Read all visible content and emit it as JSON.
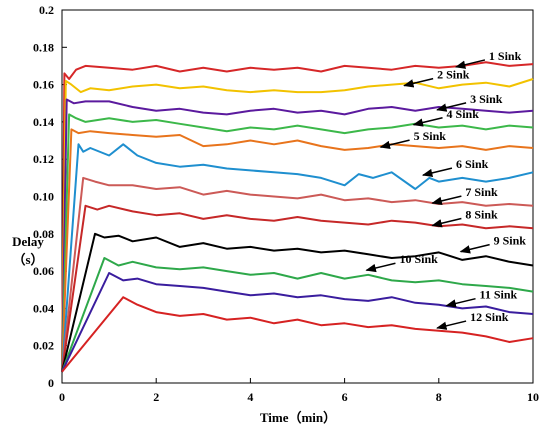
{
  "chart_data": {
    "type": "line",
    "title": "",
    "xlabel": "Time（min）",
    "ylabel": [
      "Delay",
      "（s）"
    ],
    "xlim": [
      0,
      10
    ],
    "ylim": [
      0,
      0.2
    ],
    "xticks": [
      "0",
      "2",
      "4",
      "6",
      "8",
      "10"
    ],
    "yticks": [
      "0",
      "0.02",
      "0.04",
      "0.06",
      "0.08",
      "0.10",
      "0.12",
      "0.14",
      "0.16",
      "0.18",
      "0.2"
    ],
    "grid": false,
    "legend": "annotations",
    "series": [
      {
        "name": "1 Sink",
        "color": "#d62728",
        "annotation_at": [
          8.3,
          0.17
        ],
        "x": [
          0,
          0.05,
          0.15,
          0.3,
          0.5,
          1,
          1.5,
          2,
          2.5,
          3,
          3.5,
          4,
          4.5,
          5,
          5.5,
          6,
          6.5,
          7,
          7.5,
          8,
          8.5,
          9,
          9.5,
          10
        ],
        "y": [
          0.006,
          0.166,
          0.163,
          0.168,
          0.17,
          0.169,
          0.168,
          0.17,
          0.167,
          0.169,
          0.167,
          0.169,
          0.168,
          0.169,
          0.167,
          0.17,
          0.169,
          0.168,
          0.17,
          0.169,
          0.17,
          0.172,
          0.17,
          0.171
        ]
      },
      {
        "name": "2 Sink",
        "color": "#f2c200",
        "annotation_at": [
          7.2,
          0.16
        ],
        "x": [
          0,
          0.08,
          0.2,
          0.4,
          0.6,
          1,
          1.5,
          2,
          2.5,
          3,
          3.5,
          4,
          4.5,
          5,
          5.5,
          6,
          6.5,
          7,
          7.5,
          8,
          8.5,
          9,
          9.5,
          10
        ],
        "y": [
          0.006,
          0.162,
          0.16,
          0.156,
          0.158,
          0.157,
          0.159,
          0.16,
          0.158,
          0.159,
          0.157,
          0.156,
          0.157,
          0.156,
          0.156,
          0.157,
          0.159,
          0.16,
          0.161,
          0.158,
          0.16,
          0.161,
          0.159,
          0.163
        ]
      },
      {
        "name": "3 Sink",
        "color": "#5b1a9e",
        "annotation_at": [
          7.9,
          0.147
        ],
        "x": [
          0,
          0.1,
          0.25,
          0.5,
          1,
          1.5,
          2,
          2.5,
          3,
          3.5,
          4,
          4.5,
          5,
          5.5,
          6,
          6.5,
          7,
          7.5,
          8,
          8.5,
          9,
          9.5,
          10
        ],
        "y": [
          0.006,
          0.152,
          0.15,
          0.151,
          0.151,
          0.148,
          0.146,
          0.147,
          0.145,
          0.144,
          0.146,
          0.147,
          0.145,
          0.146,
          0.144,
          0.147,
          0.148,
          0.146,
          0.148,
          0.147,
          0.146,
          0.145,
          0.146
        ]
      },
      {
        "name": "4 Sink",
        "color": "#3cb84a",
        "annotation_at": [
          7.4,
          0.139
        ],
        "x": [
          0,
          0.15,
          0.3,
          0.5,
          1,
          1.5,
          2,
          2.5,
          3,
          3.5,
          4,
          4.5,
          5,
          5.5,
          6,
          6.5,
          7,
          7.5,
          8,
          8.5,
          9,
          9.5,
          10
        ],
        "y": [
          0.006,
          0.144,
          0.142,
          0.14,
          0.142,
          0.14,
          0.141,
          0.139,
          0.137,
          0.135,
          0.137,
          0.136,
          0.138,
          0.136,
          0.134,
          0.136,
          0.137,
          0.139,
          0.137,
          0.138,
          0.136,
          0.138,
          0.137
        ]
      },
      {
        "name": "5 Sink",
        "color": "#e8741c",
        "annotation_at": [
          6.7,
          0.127
        ],
        "x": [
          0,
          0.2,
          0.35,
          0.6,
          1,
          1.5,
          2,
          2.5,
          3,
          3.5,
          4,
          4.5,
          5,
          5.5,
          6,
          6.5,
          7,
          7.5,
          8,
          8.5,
          9,
          9.5,
          10
        ],
        "y": [
          0.006,
          0.136,
          0.134,
          0.135,
          0.134,
          0.133,
          0.132,
          0.133,
          0.127,
          0.128,
          0.13,
          0.128,
          0.13,
          0.127,
          0.125,
          0.126,
          0.128,
          0.127,
          0.126,
          0.127,
          0.125,
          0.127,
          0.126
        ]
      },
      {
        "name": "6 Sink",
        "color": "#1f8fcf",
        "annotation_at": [
          7.6,
          0.112
        ],
        "x": [
          0,
          0.35,
          0.45,
          0.6,
          1,
          1.3,
          1.6,
          2,
          2.5,
          3,
          3.5,
          4,
          4.5,
          5,
          5.5,
          6,
          6.3,
          6.6,
          7,
          7.5,
          7.8,
          8,
          8.5,
          9,
          9.5,
          10
        ],
        "y": [
          0.006,
          0.128,
          0.124,
          0.126,
          0.122,
          0.128,
          0.122,
          0.118,
          0.116,
          0.117,
          0.115,
          0.114,
          0.113,
          0.112,
          0.11,
          0.106,
          0.112,
          0.11,
          0.113,
          0.104,
          0.11,
          0.108,
          0.11,
          0.108,
          0.11,
          0.113
        ]
      },
      {
        "name": "7 Sink",
        "color": "#cc5a57",
        "annotation_at": [
          7.8,
          0.097
        ],
        "x": [
          0,
          0.45,
          0.7,
          1,
          1.5,
          2,
          2.5,
          3,
          3.5,
          4,
          4.5,
          5,
          5.5,
          6,
          6.5,
          7,
          7.5,
          8,
          8.5,
          9,
          9.5,
          10
        ],
        "y": [
          0.006,
          0.11,
          0.108,
          0.106,
          0.106,
          0.104,
          0.105,
          0.101,
          0.103,
          0.101,
          0.1,
          0.099,
          0.101,
          0.098,
          0.099,
          0.097,
          0.098,
          0.096,
          0.097,
          0.095,
          0.096,
          0.095
        ]
      },
      {
        "name": "8 Sink",
        "color": "#c62828",
        "annotation_at": [
          7.8,
          0.085
        ],
        "x": [
          0,
          0.5,
          0.75,
          1,
          1.5,
          2,
          2.5,
          3,
          3.5,
          4,
          4.5,
          5,
          5.5,
          6,
          6.5,
          7,
          7.5,
          8,
          8.5,
          9,
          9.5,
          10
        ],
        "y": [
          0.006,
          0.095,
          0.093,
          0.095,
          0.092,
          0.09,
          0.091,
          0.088,
          0.09,
          0.088,
          0.087,
          0.089,
          0.087,
          0.086,
          0.085,
          0.087,
          0.086,
          0.084,
          0.085,
          0.083,
          0.084,
          0.083
        ]
      },
      {
        "name": "9 Sink",
        "color": "#000000",
        "annotation_at": [
          8.4,
          0.071
        ],
        "x": [
          0,
          0.7,
          0.9,
          1.2,
          1.5,
          2,
          2.5,
          3,
          3.5,
          4,
          4.5,
          5,
          5.5,
          6,
          6.5,
          7,
          7.5,
          8,
          8.5,
          9,
          9.5,
          10
        ],
        "y": [
          0.006,
          0.08,
          0.078,
          0.079,
          0.076,
          0.078,
          0.073,
          0.075,
          0.072,
          0.073,
          0.071,
          0.072,
          0.07,
          0.071,
          0.069,
          0.067,
          0.068,
          0.07,
          0.066,
          0.068,
          0.065,
          0.063
        ]
      },
      {
        "name": "10 Sink",
        "color": "#2ea84a",
        "annotation_at": [
          6.4,
          0.061
        ],
        "x": [
          0,
          0.9,
          1.2,
          1.5,
          2,
          2.5,
          3,
          3.5,
          4,
          4.5,
          5,
          5.5,
          6,
          6.5,
          7,
          7.5,
          8,
          8.5,
          9,
          9.5,
          10
        ],
        "y": [
          0.006,
          0.067,
          0.063,
          0.065,
          0.062,
          0.061,
          0.062,
          0.06,
          0.058,
          0.059,
          0.056,
          0.059,
          0.056,
          0.058,
          0.055,
          0.054,
          0.055,
          0.053,
          0.052,
          0.051,
          0.049
        ]
      },
      {
        "name": "11 Sink",
        "color": "#3a1d9e",
        "annotation_at": [
          8.1,
          0.042
        ],
        "x": [
          0,
          1,
          1.3,
          1.6,
          2,
          2.5,
          3,
          3.5,
          4,
          4.5,
          5,
          5.5,
          6,
          6.5,
          7,
          7.5,
          8,
          8.5,
          9,
          9.5,
          10
        ],
        "y": [
          0.006,
          0.059,
          0.055,
          0.056,
          0.053,
          0.052,
          0.051,
          0.049,
          0.047,
          0.048,
          0.046,
          0.047,
          0.045,
          0.044,
          0.046,
          0.043,
          0.042,
          0.04,
          0.041,
          0.038,
          0.037
        ]
      },
      {
        "name": "12 Sink",
        "color": "#d62222",
        "annotation_at": [
          7.9,
          0.03
        ],
        "x": [
          0,
          1.3,
          1.6,
          2,
          2.5,
          3,
          3.5,
          4,
          4.5,
          5,
          5.5,
          6,
          6.5,
          7,
          7.5,
          8,
          8.5,
          9,
          9.5,
          10
        ],
        "y": [
          0.006,
          0.046,
          0.042,
          0.038,
          0.036,
          0.037,
          0.034,
          0.035,
          0.032,
          0.034,
          0.031,
          0.032,
          0.03,
          0.031,
          0.029,
          0.028,
          0.027,
          0.025,
          0.022,
          0.024
        ]
      }
    ]
  }
}
